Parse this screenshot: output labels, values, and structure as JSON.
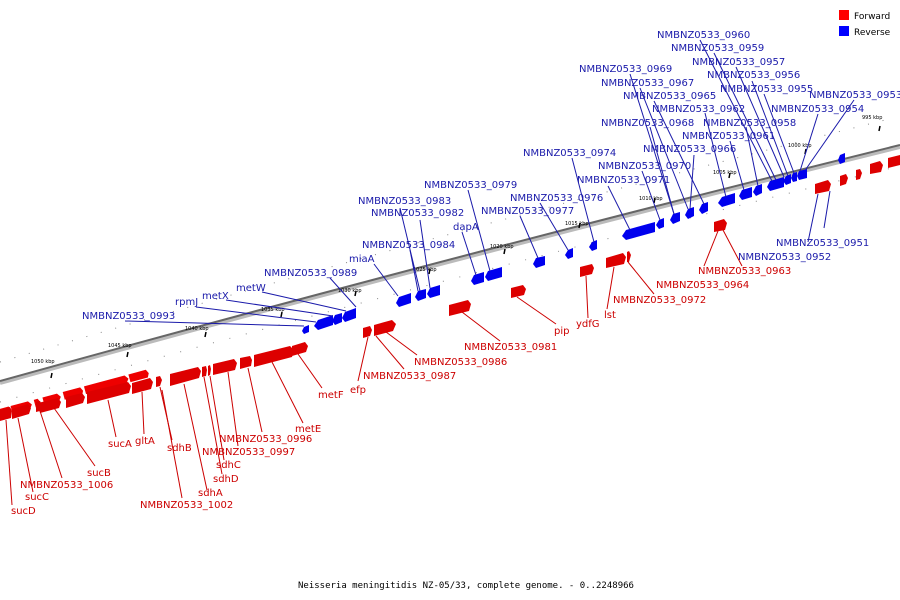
{
  "legend": [
    {
      "label": "Forward",
      "color": "#ff0000"
    },
    {
      "label": "Reverse",
      "color": "#0000ff"
    }
  ],
  "caption": "Neisseria meningitidis NZ-05/33, complete genome. - 0..2248966",
  "scale_labels": [
    "995 kbp",
    "1000 kbp",
    "1005 kbp",
    "1010 kbp",
    "1015 kbp",
    "1020 kbp",
    "1025 kbp",
    "1030 kbp",
    "1035 kbp",
    "1040 kbp",
    "1045 kbp",
    "1050 kbp"
  ],
  "forward_labels": [
    "sucD",
    "sucC",
    "NMBNZ0533_1006",
    "sucB",
    "sucA",
    "gltA",
    "sdhB",
    "NMBNZ0533_1002",
    "sdhA",
    "sdhD",
    "sdhC",
    "NMBNZ0533_0997",
    "NMBNZ0533_0996",
    "metE",
    "metF",
    "efp",
    "NMBNZ0533_0987",
    "NMBNZ0533_0986",
    "NMBNZ0533_0981",
    "pip",
    "ydfG",
    "lst",
    "NMBNZ0533_0972",
    "NMBNZ0533_0964",
    "NMBNZ0533_0963"
  ],
  "reverse_labels": [
    "NMBNZ0533_0993",
    "rpmJ",
    "metX",
    "metW",
    "NMBNZ0533_0989",
    "miaA",
    "NMBNZ0533_0984",
    "NMBNZ0533_0982",
    "NMBNZ0533_0983",
    "dapA",
    "NMBNZ0533_0979",
    "NMBNZ0533_0977",
    "NMBNZ0533_0976",
    "NMBNZ0533_0974",
    "NMBNZ0533_0971",
    "NMBNZ0533_0970",
    "NMBNZ0533_0968",
    "NMBNZ0533_0966",
    "NMBNZ0533_0965",
    "NMBNZ0533_0967",
    "NMBNZ0533_0969",
    "NMBNZ0533_0962",
    "NMBNZ0533_0961",
    "NMBNZ0533_0958",
    "NMBNZ0533_0960",
    "NMBNZ0533_0959",
    "NMBNZ0533_0957",
    "NMBNZ0533_0956",
    "NMBNZ0533_0955",
    "NMBNZ0533_0954",
    "NMBNZ0533_0953",
    "NMBNZ0533_0952",
    "NMBNZ0533_0951"
  ]
}
